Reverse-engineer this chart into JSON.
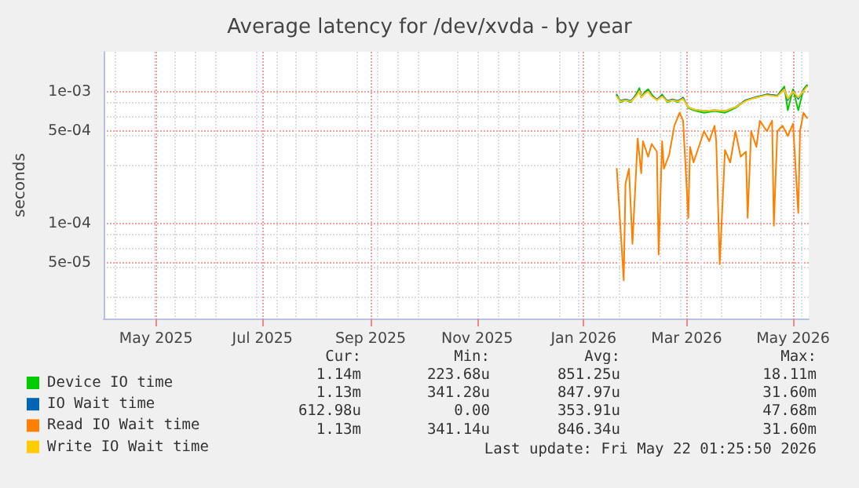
{
  "chart_data": {
    "type": "line",
    "title": "Average latency for /dev/xvda - by year",
    "ylabel": "seconds",
    "log": "y",
    "grid": true,
    "legend": "bottom left",
    "marker": "none",
    "line_style": "solid",
    "xlim": [
      "2025-04-01",
      "2026-05-10"
    ],
    "xticks": [
      {
        "value": "2025-05-01",
        "label": "May 2025"
      },
      {
        "value": "2025-07-01",
        "label": "Jul 2025"
      },
      {
        "value": "2025-09-01",
        "label": "Sep 2025"
      },
      {
        "value": "2025-11-01",
        "label": "Nov 2025"
      },
      {
        "value": "2026-01-01",
        "label": "Jan 2026"
      },
      {
        "value": "2026-03-01",
        "label": "Mar 2026"
      },
      {
        "value": "2026-05-01",
        "label": "May 2026"
      }
    ],
    "ylim": [
      1.9e-05,
      0.002
    ],
    "yticks": [
      {
        "value": 5e-05,
        "label": "5e-05"
      },
      {
        "value": 0.0001,
        "label": "1e-04"
      },
      {
        "value": 0.0005,
        "label": "5e-04"
      },
      {
        "value": 0.001,
        "label": "1e-03"
      }
    ],
    "x": [
      "2026-01-20",
      "2026-01-22",
      "2026-01-25",
      "2026-01-28",
      "2026-01-31",
      "2026-02-02",
      "2026-02-03",
      "2026-02-05",
      "2026-02-07",
      "2026-02-09",
      "2026-02-12",
      "2026-02-15",
      "2026-02-18",
      "2026-02-21",
      "2026-02-24",
      "2026-02-27",
      "2026-03-02",
      "2026-03-05",
      "2026-03-11",
      "2026-03-17",
      "2026-03-23",
      "2026-03-29",
      "2026-04-04",
      "2026-04-10",
      "2026-04-16",
      "2026-04-22",
      "2026-04-26",
      "2026-04-28",
      "2026-05-01",
      "2026-05-04",
      "2026-05-07",
      "2026-05-09"
    ],
    "series": [
      {
        "name": "Device IO time",
        "color": "#00cc00",
        "values": [
          0.00095,
          0.00083,
          0.00086,
          0.00083,
          0.00095,
          0.00106,
          0.0009,
          0.00099,
          0.00104,
          0.00095,
          0.00086,
          0.00095,
          0.00083,
          0.00086,
          0.00083,
          0.0009,
          0.00075,
          0.00072,
          0.00069,
          0.00071,
          0.00069,
          0.00075,
          0.00086,
          0.0009,
          0.00095,
          0.00093,
          0.00109,
          0.00072,
          0.00104,
          0.00072,
          0.00104,
          0.00112
        ]
      },
      {
        "name": "IO Wait time",
        "color": "#0066b3",
        "values": [
          0.00093,
          0.00085,
          0.00087,
          0.00085,
          0.00093,
          0.00102,
          0.00091,
          0.00097,
          0.00101,
          0.00093,
          0.00087,
          0.00093,
          0.00085,
          0.00087,
          0.00085,
          0.00089,
          0.00076,
          0.00073,
          0.00071,
          0.00072,
          0.00071,
          0.00076,
          0.00086,
          0.00091,
          0.00095,
          0.00093,
          0.00105,
          0.00086,
          0.00101,
          0.00088,
          0.00102,
          0.0011
        ]
      },
      {
        "name": "Read IO Wait time",
        "color": "#ff8000",
        "x": [
          "2026-01-20",
          "2026-01-24",
          "2026-01-25",
          "2026-01-27",
          "2026-01-29",
          "2026-02-01",
          "2026-02-03",
          "2026-02-04",
          "2026-02-07",
          "2026-02-09",
          "2026-02-12",
          "2026-02-13",
          "2026-02-15",
          "2026-02-16",
          "2026-02-19",
          "2026-02-22",
          "2026-02-25",
          "2026-02-27",
          "2026-03-02",
          "2026-03-03",
          "2026-03-05",
          "2026-03-08",
          "2026-03-11",
          "2026-03-14",
          "2026-03-17",
          "2026-03-18",
          "2026-03-20",
          "2026-03-23",
          "2026-03-26",
          "2026-03-29",
          "2026-04-01",
          "2026-04-04",
          "2026-04-05",
          "2026-04-07",
          "2026-04-10",
          "2026-04-12",
          "2026-04-16",
          "2026-04-19",
          "2026-04-20",
          "2026-04-22",
          "2026-04-25",
          "2026-04-28",
          "2026-05-01",
          "2026-05-04",
          "2026-05-05",
          "2026-05-07",
          "2026-05-09"
        ],
        "values": [
          0.00026,
          3.7e-05,
          0.0002,
          0.00026,
          7e-05,
          0.00044,
          0.00024,
          0.00042,
          0.00032,
          0.0004,
          0.00035,
          5.8e-05,
          0.00042,
          0.00026,
          0.00033,
          0.00055,
          0.00069,
          0.0006,
          0.00011,
          0.00038,
          0.00029,
          0.00038,
          0.0005,
          0.00042,
          0.00055,
          0.00042,
          4.9e-05,
          0.00036,
          0.00029,
          0.0005,
          0.00032,
          0.00035,
          0.00011,
          0.0005,
          0.00038,
          0.0006,
          0.0005,
          0.0006,
          9.6e-05,
          0.0005,
          0.00055,
          0.00046,
          0.00057,
          0.00012,
          0.0005,
          0.00069,
          0.00063
        ]
      },
      {
        "name": "Write IO Wait time",
        "color": "#ffcc00",
        "values": [
          0.00092,
          0.00084,
          0.00086,
          0.00084,
          0.00092,
          0.00101,
          0.0009,
          0.00096,
          0.001,
          0.00092,
          0.00086,
          0.00092,
          0.00084,
          0.00086,
          0.00084,
          0.00088,
          0.00076,
          0.00073,
          0.00071,
          0.00072,
          0.00071,
          0.00076,
          0.00085,
          0.0009,
          0.00094,
          0.00092,
          0.00104,
          0.00088,
          0.001,
          0.0009,
          0.00101,
          0.00109
        ]
      }
    ],
    "annotations": [
      "Cur:",
      "Min:",
      "Avg:",
      "Max:",
      "1.14m",
      "223.68u",
      "851.25u",
      "18.11m",
      "1.13m",
      "341.28u",
      "847.97u",
      "31.60m",
      "612.98u",
      "0.00",
      "353.91u",
      "47.68m",
      "1.13m",
      "341.14u",
      "846.34u",
      "31.60m",
      "Last update: Fri May 22 01:25:50 2026"
    ]
  }
}
